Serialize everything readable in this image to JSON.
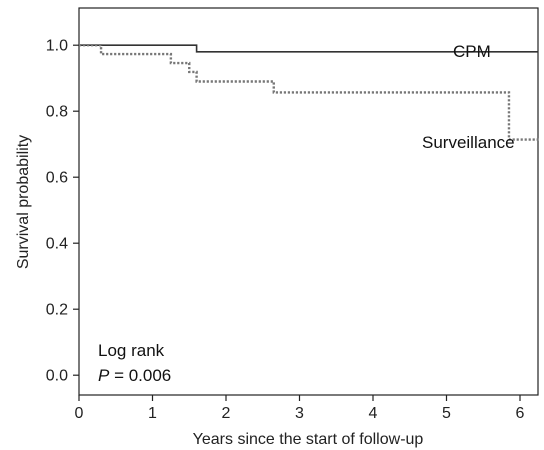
{
  "chart_data": {
    "type": "line",
    "subtype": "step",
    "title": "",
    "xlabel": "Years since the start of follow-up",
    "ylabel": "Survival probability",
    "xlim": [
      0,
      6.25
    ],
    "ylim": [
      -0.06,
      1.06
    ],
    "x_ticks": [
      "0",
      "1",
      "2",
      "3",
      "4",
      "5",
      "6"
    ],
    "y_ticks": [
      "0.0",
      "0.2",
      "0.4",
      "0.6",
      "0.8",
      "1.0"
    ],
    "grid": false,
    "series": [
      {
        "name": "CPM",
        "line_style": "solid",
        "color": "#333333",
        "x": [
          0,
          1.6,
          1.6,
          6.25
        ],
        "y": [
          1.0,
          1.0,
          0.98,
          0.98
        ]
      },
      {
        "name": "Surveillance",
        "line_style": "dotted",
        "color": "#777777",
        "x": [
          0,
          0.3,
          0.3,
          1.25,
          1.25,
          1.5,
          1.5,
          1.6,
          1.6,
          2.65,
          2.65,
          5.85,
          5.85,
          6.25
        ],
        "y": [
          1.0,
          1.0,
          0.973,
          0.973,
          0.946,
          0.946,
          0.919,
          0.919,
          0.89,
          0.89,
          0.857,
          0.857,
          0.714,
          0.714
        ]
      }
    ],
    "annotation": {
      "line1": "Log rank",
      "p_label": "P",
      "p_value": " = 0.006"
    }
  }
}
